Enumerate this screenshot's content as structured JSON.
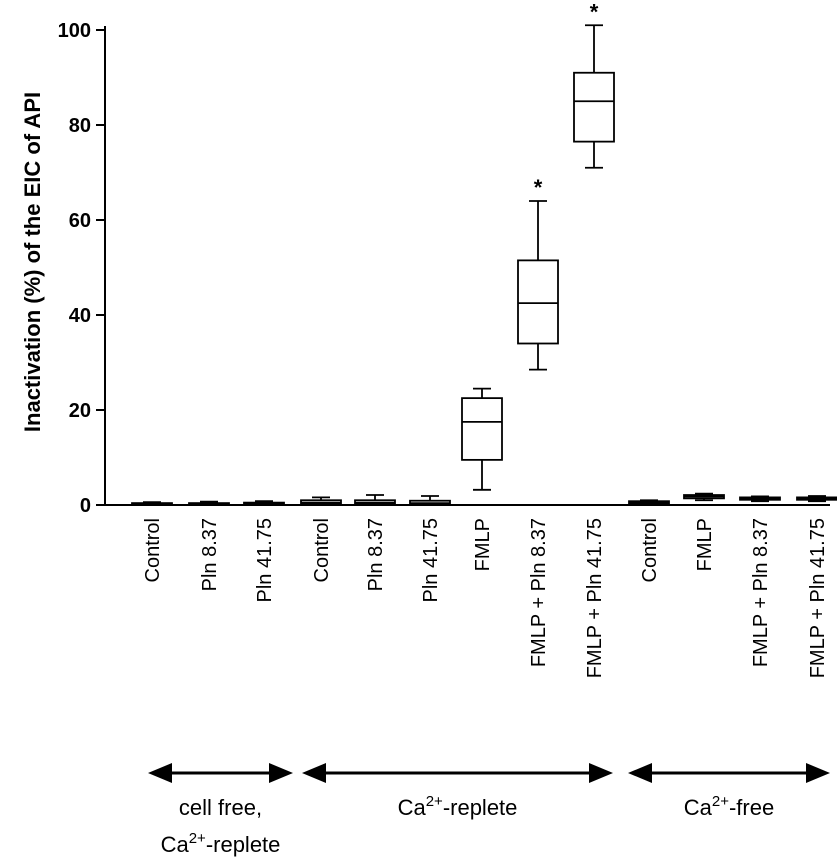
{
  "chart_data": {
    "type": "box",
    "ylabel": "Inactivation (%) of the EIC of API",
    "ylim": [
      0,
      100
    ],
    "yticks": [
      0,
      20,
      40,
      60,
      80,
      100
    ],
    "categories": [
      "Control",
      "Pln 8.37",
      "Pln 41.75",
      "Control",
      "Pln 8.37",
      "Pln 41.75",
      "FMLP",
      "FMLP + Pln 8.37",
      "FMLP + Pln 41.75",
      "Control",
      "FMLP",
      "FMLP + Pln 8.37",
      "FMLP + Pln 41.75"
    ],
    "boxes": [
      {
        "min": 0,
        "q1": 0.1,
        "median": 0.2,
        "q3": 0.4,
        "max": 0.6,
        "sig": ""
      },
      {
        "min": 0,
        "q1": 0.1,
        "median": 0.2,
        "q3": 0.4,
        "max": 0.7,
        "sig": ""
      },
      {
        "min": 0,
        "q1": 0.1,
        "median": 0.3,
        "q3": 0.5,
        "max": 0.8,
        "sig": ""
      },
      {
        "min": 0,
        "q1": 0.2,
        "median": 0.5,
        "q3": 1.0,
        "max": 1.6,
        "sig": ""
      },
      {
        "min": 0,
        "q1": 0.2,
        "median": 0.5,
        "q3": 1.0,
        "max": 2.1,
        "sig": ""
      },
      {
        "min": 0,
        "q1": 0.2,
        "median": 0.4,
        "q3": 0.9,
        "max": 1.9,
        "sig": ""
      },
      {
        "min": 3.2,
        "q1": 9.5,
        "median": 17.5,
        "q3": 22.5,
        "max": 24.5,
        "sig": ""
      },
      {
        "min": 28.5,
        "q1": 34,
        "median": 42.5,
        "q3": 51.5,
        "max": 64,
        "sig": "*"
      },
      {
        "min": 71,
        "q1": 76.5,
        "median": 85,
        "q3": 91,
        "max": 101,
        "sig": "*"
      },
      {
        "min": 0.2,
        "q1": 0.4,
        "median": 0.6,
        "q3": 0.8,
        "max": 1.0,
        "sig": ""
      },
      {
        "min": 1.0,
        "q1": 1.4,
        "median": 1.8,
        "q3": 2.1,
        "max": 2.4,
        "sig": ""
      },
      {
        "min": 0.8,
        "q1": 1.1,
        "median": 1.4,
        "q3": 1.6,
        "max": 1.8,
        "sig": ""
      },
      {
        "min": 0.8,
        "q1": 1.1,
        "median": 1.4,
        "q3": 1.6,
        "max": 1.9,
        "sig": ""
      }
    ],
    "groups": [
      {
        "label_lines": [
          "cell free,",
          "Ca",
          "2+",
          "-replete"
        ],
        "from": 0,
        "to": 2
      },
      {
        "label_lines": [
          "Ca",
          "2+",
          "-replete"
        ],
        "from": 3,
        "to": 8
      },
      {
        "label_lines": [
          "Ca",
          "2+",
          "-free"
        ],
        "from": 9,
        "to": 12
      }
    ],
    "grid": false,
    "legend": "none"
  }
}
